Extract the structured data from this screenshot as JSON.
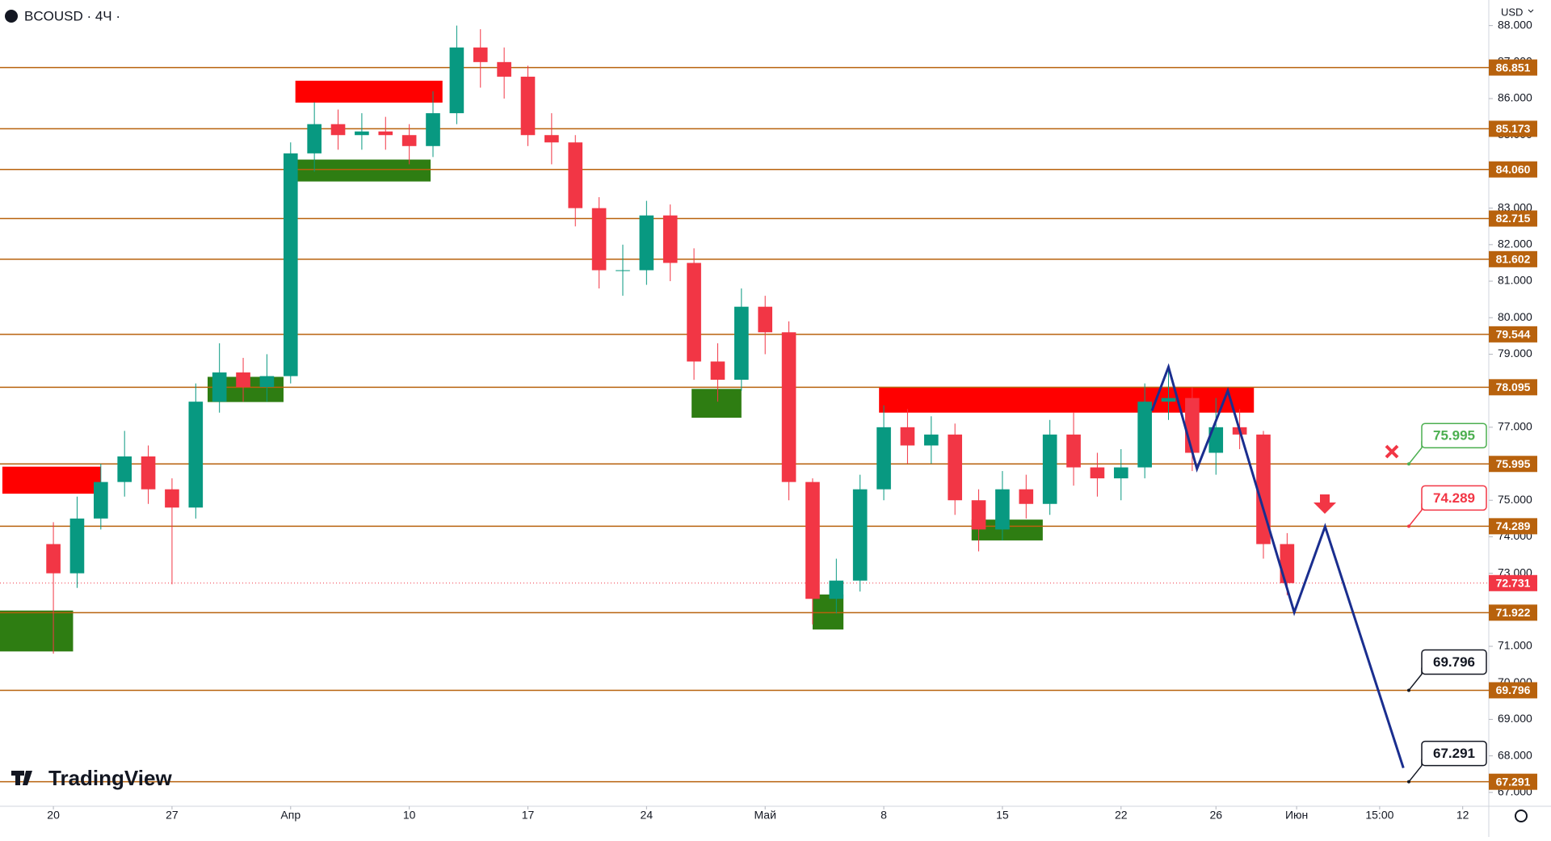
{
  "header": {
    "symbol": "BCOUSD · 4Ч ·",
    "currency": "USD",
    "brand": "TradingView"
  },
  "chart_data": {
    "type": "candlestick",
    "x": [
      0,
      1,
      2,
      3,
      4,
      5,
      6,
      7,
      8,
      9,
      10,
      11,
      12,
      13,
      14,
      15,
      16,
      17,
      18,
      19,
      20,
      21,
      22,
      23,
      24,
      25,
      26,
      27,
      28,
      29,
      30,
      31,
      32,
      33,
      34,
      35,
      36,
      37,
      38,
      39,
      40,
      41,
      42,
      43,
      44,
      45,
      46,
      47,
      48,
      49,
      50,
      51,
      52
    ],
    "open": [
      73.8,
      73.0,
      74.5,
      75.5,
      76.2,
      75.3,
      74.8,
      77.7,
      78.5,
      78.1,
      78.4,
      84.5,
      85.3,
      85.0,
      85.1,
      85.0,
      84.7,
      85.6,
      87.4,
      87.0,
      86.6,
      85.0,
      84.8,
      83.0,
      81.3,
      81.3,
      82.8,
      81.5,
      78.8,
      78.3,
      80.3,
      79.6,
      75.5,
      72.3,
      72.8,
      75.3,
      77.0,
      76.5,
      76.8,
      75.0,
      74.2,
      75.3,
      74.9,
      76.8,
      75.9,
      75.6,
      75.9,
      77.7,
      77.8,
      76.3,
      77.0,
      76.8,
      73.8
    ],
    "high": [
      74.4,
      75.1,
      76.0,
      76.9,
      76.5,
      75.6,
      78.2,
      79.3,
      78.9,
      79.0,
      84.8,
      85.9,
      85.7,
      85.6,
      85.5,
      85.3,
      86.2,
      88.0,
      87.9,
      87.4,
      86.9,
      85.6,
      85.0,
      83.3,
      82.0,
      83.2,
      83.1,
      81.9,
      79.3,
      80.8,
      80.6,
      79.9,
      75.6,
      73.4,
      75.7,
      77.6,
      77.5,
      77.3,
      77.1,
      75.3,
      75.8,
      75.7,
      77.2,
      77.4,
      76.3,
      76.4,
      78.2,
      78.6,
      78.1,
      77.8,
      77.5,
      76.9,
      74.1
    ],
    "low": [
      70.8,
      72.6,
      74.2,
      75.1,
      74.9,
      72.7,
      74.5,
      77.4,
      77.7,
      77.7,
      78.2,
      84.0,
      84.6,
      84.6,
      84.6,
      84.2,
      84.4,
      85.3,
      86.3,
      86.0,
      84.7,
      84.2,
      82.5,
      80.8,
      80.6,
      80.9,
      81.0,
      78.3,
      77.7,
      78.0,
      79.0,
      75.0,
      71.6,
      71.9,
      72.5,
      75.0,
      76.0,
      76.0,
      74.6,
      73.6,
      73.9,
      74.5,
      74.6,
      75.4,
      75.1,
      75.0,
      75.6,
      77.2,
      75.8,
      75.7,
      76.4,
      73.4,
      72.4
    ],
    "close": [
      73.0,
      74.5,
      75.5,
      76.2,
      75.3,
      74.8,
      77.7,
      78.5,
      78.1,
      78.4,
      84.5,
      85.3,
      85.0,
      85.1,
      85.0,
      84.7,
      85.6,
      87.4,
      87.0,
      86.6,
      85.0,
      84.8,
      83.0,
      81.3,
      81.3,
      82.8,
      81.5,
      78.8,
      78.3,
      80.3,
      79.6,
      75.5,
      72.3,
      72.8,
      75.3,
      77.0,
      76.5,
      76.8,
      75.0,
      74.2,
      75.3,
      74.9,
      76.8,
      75.9,
      75.6,
      75.9,
      77.7,
      77.8,
      76.3,
      77.0,
      76.8,
      73.8,
      72.731
    ],
    "up_color": "#089981",
    "down_color": "#f23645",
    "xlim": [
      -2.25,
      60.5
    ],
    "ylim": [
      66.62,
      88.7
    ],
    "xticks": [
      {
        "value": 0,
        "label": "20"
      },
      {
        "value": 5,
        "label": "27"
      },
      {
        "value": 10,
        "label": "Апр"
      },
      {
        "value": 15,
        "label": "10"
      },
      {
        "value": 20,
        "label": "17"
      },
      {
        "value": 25,
        "label": "24"
      },
      {
        "value": 30,
        "label": "Май"
      },
      {
        "value": 35,
        "label": "8"
      },
      {
        "value": 40,
        "label": "15"
      },
      {
        "value": 45,
        "label": "22"
      },
      {
        "value": 49,
        "label": "26"
      },
      {
        "value": 52.4,
        "label": "Июн"
      },
      {
        "value": 55.9,
        "label": "15:00"
      },
      {
        "value": 59.4,
        "label": "12"
      }
    ],
    "yticks": [
      {
        "value": 67,
        "label": "67.000"
      },
      {
        "value": 68,
        "label": "68.000"
      },
      {
        "value": 69,
        "label": "69.000"
      },
      {
        "value": 70,
        "label": "70.000"
      },
      {
        "value": 71,
        "label": "71.000"
      },
      {
        "value": 72,
        "label": "72.000"
      },
      {
        "value": 73,
        "label": "73.000"
      },
      {
        "value": 74,
        "label": "74.000"
      },
      {
        "value": 75,
        "label": "75.000"
      },
      {
        "value": 76,
        "label": "76.000"
      },
      {
        "value": 77,
        "label": "77.000"
      },
      {
        "value": 78,
        "label": "78.000"
      },
      {
        "value": 79,
        "label": "79.000"
      },
      {
        "value": 80,
        "label": "80.000"
      },
      {
        "value": 81,
        "label": "81.000"
      },
      {
        "value": 82,
        "label": "82.000"
      },
      {
        "value": 83,
        "label": "83.000"
      },
      {
        "value": 84,
        "label": "84.000"
      },
      {
        "value": 85,
        "label": "85.000"
      },
      {
        "value": 86,
        "label": "86.000"
      },
      {
        "value": 87,
        "label": "87.000"
      },
      {
        "value": 88,
        "label": "88.000"
      }
    ],
    "level_color": "#b8620d",
    "levels": [
      {
        "value": 86.851
      },
      {
        "value": 85.173
      },
      {
        "value": 84.06,
        "label": "84.060"
      },
      {
        "value": 82.715
      },
      {
        "value": 81.602
      },
      {
        "value": 79.544
      },
      {
        "value": 78.095
      },
      {
        "value": 75.995,
        "callout": "#4caf50"
      },
      {
        "value": 74.289,
        "callout": "#f23645"
      },
      {
        "value": 71.922
      },
      {
        "value": 69.796,
        "callout": "#131722"
      },
      {
        "value": 67.291,
        "callout": "#131722"
      }
    ],
    "last_price": 72.731,
    "last_price_color": "#f23645",
    "zones": [
      {
        "color": "#ff0000",
        "x": [
          -2.15,
          2
        ],
        "y": [
          75.92,
          75.18
        ]
      },
      {
        "color": "#ff0000",
        "x": [
          10.2,
          16.4
        ],
        "y": [
          86.49,
          85.89
        ]
      },
      {
        "color": "#ff0000",
        "x": [
          34.8,
          50.6
        ],
        "y": [
          78.1,
          77.4
        ]
      },
      {
        "color": "#2e7d12",
        "x": [
          -2.25,
          0.83
        ],
        "y": [
          71.98,
          70.86
        ]
      },
      {
        "color": "#2e7d12",
        "x": [
          6.5,
          9.7
        ],
        "y": [
          78.38,
          77.69
        ]
      },
      {
        "color": "#2e7d12",
        "x": [
          10.2,
          15.9
        ],
        "y": [
          84.33,
          83.73
        ]
      },
      {
        "color": "#2e7d12",
        "x": [
          26.9,
          29.0
        ],
        "y": [
          78.05,
          77.26
        ]
      },
      {
        "color": "#2e7d12",
        "x": [
          32.0,
          33.3
        ],
        "y": [
          72.42,
          71.46
        ]
      },
      {
        "color": "#2e7d12",
        "x": [
          38.7,
          41.7
        ],
        "y": [
          74.47,
          73.9
        ]
      }
    ],
    "projection": {
      "color": "#1a2e8f",
      "x": [
        46.3,
        47.0,
        48.2,
        49.5,
        52.3,
        53.6,
        56.9
      ],
      "y": [
        77.45,
        78.65,
        75.86,
        78.0,
        71.93,
        74.28,
        67.67
      ]
    }
  }
}
